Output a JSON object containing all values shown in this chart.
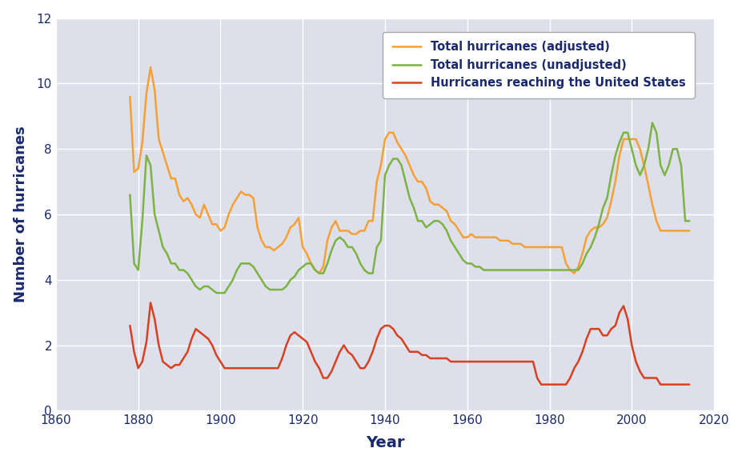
{
  "xlabel": "Year",
  "ylabel": "Number of hurricanes",
  "xlim": [
    1860,
    2020
  ],
  "ylim": [
    0,
    12
  ],
  "yticks": [
    0,
    2,
    4,
    6,
    8,
    10,
    12
  ],
  "xticks": [
    1860,
    1880,
    1900,
    1920,
    1940,
    1960,
    1980,
    2000,
    2020
  ],
  "bg_color": "#dde0eb",
  "fig_color": "#ffffff",
  "grid_color": "#ffffff",
  "adjusted": {
    "label": "Total hurricanes (adjusted)",
    "color": "#f5a033",
    "years": [
      1878,
      1879,
      1880,
      1881,
      1882,
      1883,
      1884,
      1885,
      1886,
      1887,
      1888,
      1889,
      1890,
      1891,
      1892,
      1893,
      1894,
      1895,
      1896,
      1897,
      1898,
      1899,
      1900,
      1901,
      1902,
      1903,
      1904,
      1905,
      1906,
      1907,
      1908,
      1909,
      1910,
      1911,
      1912,
      1913,
      1914,
      1915,
      1916,
      1917,
      1918,
      1919,
      1920,
      1921,
      1922,
      1923,
      1924,
      1925,
      1926,
      1927,
      1928,
      1929,
      1930,
      1931,
      1932,
      1933,
      1934,
      1935,
      1936,
      1937,
      1938,
      1939,
      1940,
      1941,
      1942,
      1943,
      1944,
      1945,
      1946,
      1947,
      1948,
      1949,
      1950,
      1951,
      1952,
      1953,
      1954,
      1955,
      1956,
      1957,
      1958,
      1959,
      1960,
      1961,
      1962,
      1963,
      1964,
      1965,
      1966,
      1967,
      1968,
      1969,
      1970,
      1971,
      1972,
      1973,
      1974,
      1975,
      1976,
      1977,
      1978,
      1979,
      1980,
      1981,
      1982,
      1983,
      1984,
      1985,
      1986,
      1987,
      1988,
      1989,
      1990,
      1991,
      1992,
      1993,
      1994,
      1995,
      1996,
      1997,
      1998,
      1999,
      2000,
      2001,
      2002,
      2003,
      2004,
      2005,
      2006,
      2007,
      2008,
      2009,
      2010,
      2011,
      2012,
      2013,
      2014
    ],
    "values": [
      9.6,
      7.3,
      7.4,
      8.2,
      9.7,
      10.5,
      9.8,
      8.3,
      7.9,
      7.5,
      7.1,
      7.1,
      6.6,
      6.4,
      6.5,
      6.3,
      6.0,
      5.9,
      6.3,
      6.0,
      5.7,
      5.7,
      5.5,
      5.6,
      6.0,
      6.3,
      6.5,
      6.7,
      6.6,
      6.6,
      6.5,
      5.6,
      5.2,
      5.0,
      5.0,
      4.9,
      5.0,
      5.1,
      5.3,
      5.6,
      5.7,
      5.9,
      5.0,
      4.8,
      4.5,
      4.3,
      4.2,
      4.4,
      5.2,
      5.6,
      5.8,
      5.5,
      5.5,
      5.5,
      5.4,
      5.4,
      5.5,
      5.5,
      5.8,
      5.8,
      7.0,
      7.5,
      8.3,
      8.5,
      8.5,
      8.2,
      8.0,
      7.8,
      7.5,
      7.2,
      7.0,
      7.0,
      6.8,
      6.4,
      6.3,
      6.3,
      6.2,
      6.1,
      5.8,
      5.7,
      5.5,
      5.3,
      5.3,
      5.4,
      5.3,
      5.3,
      5.3,
      5.3,
      5.3,
      5.3,
      5.2,
      5.2,
      5.2,
      5.1,
      5.1,
      5.1,
      5.0,
      5.0,
      5.0,
      5.0,
      5.0,
      5.0,
      5.0,
      5.0,
      5.0,
      5.0,
      4.5,
      4.3,
      4.2,
      4.4,
      4.8,
      5.3,
      5.5,
      5.6,
      5.6,
      5.7,
      5.9,
      6.4,
      7.0,
      7.8,
      8.3,
      8.3,
      8.3,
      8.3,
      8.0,
      7.5,
      6.9,
      6.3,
      5.8,
      5.5,
      5.5,
      5.5,
      5.5,
      5.5,
      5.5,
      5.5,
      5.5
    ]
  },
  "unadjusted": {
    "label": "Total hurricanes (unadjusted)",
    "color": "#7cb342",
    "years": [
      1878,
      1879,
      1880,
      1881,
      1882,
      1883,
      1884,
      1885,
      1886,
      1887,
      1888,
      1889,
      1890,
      1891,
      1892,
      1893,
      1894,
      1895,
      1896,
      1897,
      1898,
      1899,
      1900,
      1901,
      1902,
      1903,
      1904,
      1905,
      1906,
      1907,
      1908,
      1909,
      1910,
      1911,
      1912,
      1913,
      1914,
      1915,
      1916,
      1917,
      1918,
      1919,
      1920,
      1921,
      1922,
      1923,
      1924,
      1925,
      1926,
      1927,
      1928,
      1929,
      1930,
      1931,
      1932,
      1933,
      1934,
      1935,
      1936,
      1937,
      1938,
      1939,
      1940,
      1941,
      1942,
      1943,
      1944,
      1945,
      1946,
      1947,
      1948,
      1949,
      1950,
      1951,
      1952,
      1953,
      1954,
      1955,
      1956,
      1957,
      1958,
      1959,
      1960,
      1961,
      1962,
      1963,
      1964,
      1965,
      1966,
      1967,
      1968,
      1969,
      1970,
      1971,
      1972,
      1973,
      1974,
      1975,
      1976,
      1977,
      1978,
      1979,
      1980,
      1981,
      1982,
      1983,
      1984,
      1985,
      1986,
      1987,
      1988,
      1989,
      1990,
      1991,
      1992,
      1993,
      1994,
      1995,
      1996,
      1997,
      1998,
      1999,
      2000,
      2001,
      2002,
      2003,
      2004,
      2005,
      2006,
      2007,
      2008,
      2009,
      2010,
      2011,
      2012,
      2013,
      2014
    ],
    "values": [
      6.6,
      4.5,
      4.3,
      5.8,
      7.8,
      7.5,
      6.0,
      5.5,
      5.0,
      4.8,
      4.5,
      4.5,
      4.3,
      4.3,
      4.2,
      4.0,
      3.8,
      3.7,
      3.8,
      3.8,
      3.7,
      3.6,
      3.6,
      3.6,
      3.8,
      4.0,
      4.3,
      4.5,
      4.5,
      4.5,
      4.4,
      4.2,
      4.0,
      3.8,
      3.7,
      3.7,
      3.7,
      3.7,
      3.8,
      4.0,
      4.1,
      4.3,
      4.4,
      4.5,
      4.5,
      4.3,
      4.2,
      4.2,
      4.5,
      4.9,
      5.2,
      5.3,
      5.2,
      5.0,
      5.0,
      4.8,
      4.5,
      4.3,
      4.2,
      4.2,
      5.0,
      5.2,
      7.2,
      7.5,
      7.7,
      7.7,
      7.5,
      7.0,
      6.5,
      6.2,
      5.8,
      5.8,
      5.6,
      5.7,
      5.8,
      5.8,
      5.7,
      5.5,
      5.2,
      5.0,
      4.8,
      4.6,
      4.5,
      4.5,
      4.4,
      4.4,
      4.3,
      4.3,
      4.3,
      4.3,
      4.3,
      4.3,
      4.3,
      4.3,
      4.3,
      4.3,
      4.3,
      4.3,
      4.3,
      4.3,
      4.3,
      4.3,
      4.3,
      4.3,
      4.3,
      4.3,
      4.3,
      4.3,
      4.3,
      4.3,
      4.5,
      4.8,
      5.0,
      5.3,
      5.7,
      6.2,
      6.5,
      7.2,
      7.8,
      8.2,
      8.5,
      8.5,
      8.0,
      7.5,
      7.2,
      7.5,
      8.0,
      8.8,
      8.5,
      7.5,
      7.2,
      7.5,
      8.0,
      8.0,
      7.5,
      5.8,
      5.8
    ]
  },
  "us_landfall": {
    "label": "Hurricanes reaching the United States",
    "color": "#d94020",
    "years": [
      1878,
      1879,
      1880,
      1881,
      1882,
      1883,
      1884,
      1885,
      1886,
      1887,
      1888,
      1889,
      1890,
      1891,
      1892,
      1893,
      1894,
      1895,
      1896,
      1897,
      1898,
      1899,
      1900,
      1901,
      1902,
      1903,
      1904,
      1905,
      1906,
      1907,
      1908,
      1909,
      1910,
      1911,
      1912,
      1913,
      1914,
      1915,
      1916,
      1917,
      1918,
      1919,
      1920,
      1921,
      1922,
      1923,
      1924,
      1925,
      1926,
      1927,
      1928,
      1929,
      1930,
      1931,
      1932,
      1933,
      1934,
      1935,
      1936,
      1937,
      1938,
      1939,
      1940,
      1941,
      1942,
      1943,
      1944,
      1945,
      1946,
      1947,
      1948,
      1949,
      1950,
      1951,
      1952,
      1953,
      1954,
      1955,
      1956,
      1957,
      1958,
      1959,
      1960,
      1961,
      1962,
      1963,
      1964,
      1965,
      1966,
      1967,
      1968,
      1969,
      1970,
      1971,
      1972,
      1973,
      1974,
      1975,
      1976,
      1977,
      1978,
      1979,
      1980,
      1981,
      1982,
      1983,
      1984,
      1985,
      1986,
      1987,
      1988,
      1989,
      1990,
      1991,
      1992,
      1993,
      1994,
      1995,
      1996,
      1997,
      1998,
      1999,
      2000,
      2001,
      2002,
      2003,
      2004,
      2005,
      2006,
      2007,
      2008,
      2009,
      2010,
      2011,
      2012,
      2013,
      2014
    ],
    "values": [
      2.6,
      1.8,
      1.3,
      1.5,
      2.1,
      3.3,
      2.8,
      2.0,
      1.5,
      1.4,
      1.3,
      1.4,
      1.4,
      1.6,
      1.8,
      2.2,
      2.5,
      2.4,
      2.3,
      2.2,
      2.0,
      1.7,
      1.5,
      1.3,
      1.3,
      1.3,
      1.3,
      1.3,
      1.3,
      1.3,
      1.3,
      1.3,
      1.3,
      1.3,
      1.3,
      1.3,
      1.3,
      1.6,
      2.0,
      2.3,
      2.4,
      2.3,
      2.2,
      2.1,
      1.8,
      1.5,
      1.3,
      1.0,
      1.0,
      1.2,
      1.5,
      1.8,
      2.0,
      1.8,
      1.7,
      1.5,
      1.3,
      1.3,
      1.5,
      1.8,
      2.2,
      2.5,
      2.6,
      2.6,
      2.5,
      2.3,
      2.2,
      2.0,
      1.8,
      1.8,
      1.8,
      1.7,
      1.7,
      1.6,
      1.6,
      1.6,
      1.6,
      1.6,
      1.5,
      1.5,
      1.5,
      1.5,
      1.5,
      1.5,
      1.5,
      1.5,
      1.5,
      1.5,
      1.5,
      1.5,
      1.5,
      1.5,
      1.5,
      1.5,
      1.5,
      1.5,
      1.5,
      1.5,
      1.5,
      1.0,
      0.8,
      0.8,
      0.8,
      0.8,
      0.8,
      0.8,
      0.8,
      1.0,
      1.3,
      1.5,
      1.8,
      2.2,
      2.5,
      2.5,
      2.5,
      2.3,
      2.3,
      2.5,
      2.6,
      3.0,
      3.2,
      2.8,
      2.0,
      1.5,
      1.2,
      1.0,
      1.0,
      1.0,
      1.0,
      0.8,
      0.8,
      0.8,
      0.8,
      0.8,
      0.8,
      0.8,
      0.8
    ]
  }
}
